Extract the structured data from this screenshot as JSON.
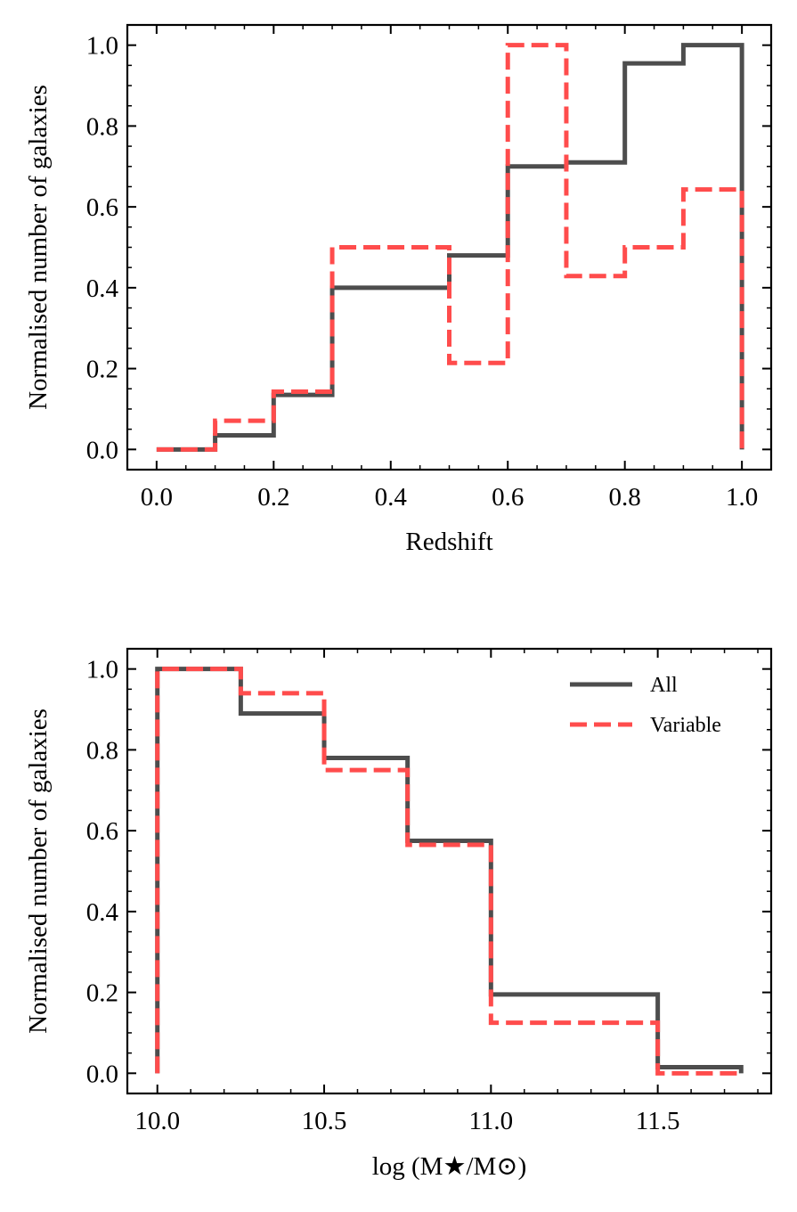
{
  "chart_data": [
    {
      "type": "step-histogram",
      "ylabel": "Normalised number of galaxies",
      "xlabel": "Redshift",
      "xlim": [
        -0.05,
        1.05
      ],
      "ylim": [
        -0.05,
        1.05
      ],
      "xticks": [
        0.0,
        0.2,
        0.4,
        0.6,
        0.8,
        1.0
      ],
      "xtick_labels": [
        "0.0",
        "0.2",
        "0.4",
        "0.6",
        "0.8",
        "1.0"
      ],
      "yticks": [
        0.0,
        0.2,
        0.4,
        0.6,
        0.8,
        1.0
      ],
      "ytick_labels": [
        "0.0",
        "0.2",
        "0.4",
        "0.6",
        "0.8",
        "1.0"
      ],
      "bin_edges": [
        0.0,
        0.1,
        0.2,
        0.3,
        0.4,
        0.5,
        0.6,
        0.7,
        0.8,
        0.9,
        1.0
      ],
      "series": [
        {
          "name": "All",
          "color": "#4d4d4d",
          "style": "solid",
          "values": [
            0.0,
            0.035,
            0.135,
            0.4,
            0.4,
            0.48,
            0.7,
            0.71,
            0.955,
            1.0
          ]
        },
        {
          "name": "Variable",
          "color": "#ff4c4c",
          "style": "dashed",
          "values": [
            0.0,
            0.071,
            0.143,
            0.5,
            0.5,
            0.214,
            1.0,
            0.429,
            0.5,
            0.643
          ]
        }
      ]
    },
    {
      "type": "step-histogram",
      "ylabel": "Normalised number of galaxies",
      "xlabel": "log (M★/M⊙)",
      "xlim": [
        9.91,
        11.84
      ],
      "ylim": [
        -0.05,
        1.05
      ],
      "xticks": [
        10.0,
        10.5,
        11.0,
        11.5
      ],
      "xtick_labels": [
        "10.0",
        "10.5",
        "11.0",
        "11.5"
      ],
      "yticks": [
        0.0,
        0.2,
        0.4,
        0.6,
        0.8,
        1.0
      ],
      "ytick_labels": [
        "0.0",
        "0.2",
        "0.4",
        "0.6",
        "0.8",
        "1.0"
      ],
      "bin_edges": [
        10.0,
        10.25,
        10.5,
        10.75,
        11.0,
        11.25,
        11.5,
        11.75
      ],
      "legend": {
        "placement": "top-right",
        "entries": [
          "All",
          "Variable"
        ]
      },
      "series": [
        {
          "name": "All",
          "color": "#4d4d4d",
          "style": "solid",
          "values": [
            1.0,
            0.89,
            0.78,
            0.575,
            0.195,
            0.195,
            0.015
          ]
        },
        {
          "name": "Variable",
          "color": "#ff4c4c",
          "style": "dashed",
          "values": [
            1.0,
            0.94,
            0.75,
            0.565,
            0.125,
            0.125,
            0.0
          ]
        }
      ]
    }
  ]
}
